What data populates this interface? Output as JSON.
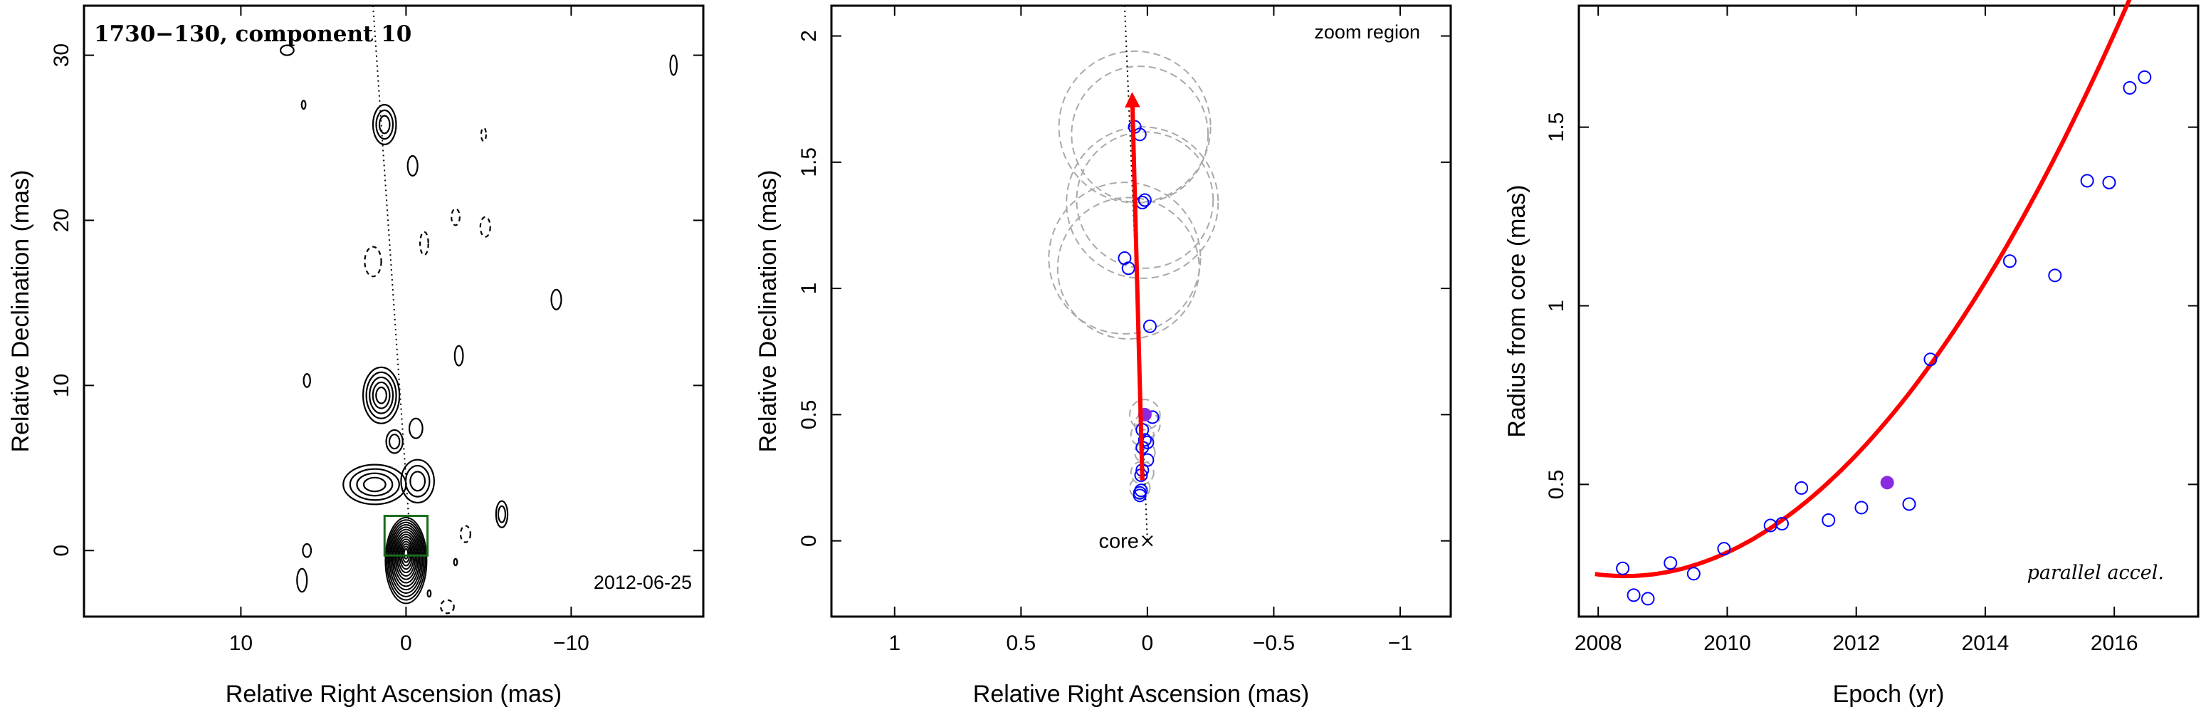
{
  "chart_data": [
    {
      "type": "contour",
      "title": "1730−130, component 10",
      "annotation": "2012-06-25",
      "xlabel": "Relative Right Ascension (mas)",
      "ylabel": "Relative Declination (mas)",
      "xlim": [
        19.5,
        -18
      ],
      "ylim": [
        -4,
        33
      ],
      "xticks": [
        {
          "v": 10,
          "label": "10"
        },
        {
          "v": 0,
          "label": "0"
        },
        {
          "v": -10,
          "label": "−10"
        }
      ],
      "yticks": [
        {
          "v": 0,
          "label": "0"
        },
        {
          "v": 10,
          "label": "10"
        },
        {
          "v": 20,
          "label": "20"
        },
        {
          "v": 30,
          "label": "30"
        }
      ],
      "jet_axis": [
        [
          2.0,
          33.0
        ],
        [
          -0.3,
          0.0
        ]
      ],
      "zoom_box": {
        "x": [
          1.3,
          -1.3
        ],
        "y": [
          -0.3,
          2.1
        ],
        "color": "#1a6b1a"
      },
      "core_contours": {
        "center": [
          0,
          -0.2
        ],
        "count": 14,
        "rx_max": 1.25,
        "ry_max": 2.6,
        "rx_min": 0.12,
        "ry_min": 0.3
      },
      "contours": [
        {
          "cx": 1.5,
          "cy": 9.4,
          "rx": 1.1,
          "ry": 1.7,
          "levels": 5,
          "style": "solid"
        },
        {
          "cx": 1.9,
          "cy": 4.0,
          "rx": 1.9,
          "ry": 1.2,
          "levels": 4,
          "style": "solid"
        },
        {
          "cx": 0.7,
          "cy": 6.6,
          "rx": 0.5,
          "ry": 0.7,
          "levels": 2,
          "style": "solid"
        },
        {
          "cx": -0.6,
          "cy": 7.4,
          "rx": 0.4,
          "ry": 0.6,
          "levels": 1,
          "style": "solid"
        },
        {
          "cx": -0.7,
          "cy": 4.2,
          "rx": 1.0,
          "ry": 1.3,
          "levels": 3,
          "style": "solid"
        },
        {
          "cx": 1.3,
          "cy": 25.8,
          "rx": 0.7,
          "ry": 1.2,
          "levels": 3,
          "style": "solid"
        },
        {
          "cx": -0.4,
          "cy": 23.3,
          "rx": 0.3,
          "ry": 0.6,
          "levels": 1,
          "style": "solid"
        },
        {
          "cx": -3.0,
          "cy": 20.2,
          "rx": 0.25,
          "ry": 0.5,
          "levels": 1,
          "style": "dashed"
        },
        {
          "cx": -1.1,
          "cy": 18.6,
          "rx": 0.25,
          "ry": 0.7,
          "levels": 1,
          "style": "dashed"
        },
        {
          "cx": 2.0,
          "cy": 17.5,
          "rx": 0.5,
          "ry": 0.9,
          "levels": 1,
          "style": "dashed"
        },
        {
          "cx": -4.8,
          "cy": 19.6,
          "rx": 0.3,
          "ry": 0.6,
          "levels": 1,
          "style": "dashed"
        },
        {
          "cx": -3.2,
          "cy": 11.8,
          "rx": 0.25,
          "ry": 0.6,
          "levels": 1,
          "style": "solid"
        },
        {
          "cx": -9.1,
          "cy": 15.2,
          "rx": 0.3,
          "ry": 0.6,
          "levels": 1,
          "style": "solid"
        },
        {
          "cx": -16.2,
          "cy": 29.4,
          "rx": 0.2,
          "ry": 0.6,
          "levels": 1,
          "style": "solid"
        },
        {
          "cx": -4.7,
          "cy": 25.2,
          "rx": 0.15,
          "ry": 0.4,
          "levels": 1,
          "style": "dashed"
        },
        {
          "cx": 7.2,
          "cy": 30.3,
          "rx": 0.4,
          "ry": 0.3,
          "levels": 1,
          "style": "solid"
        },
        {
          "cx": 6.2,
          "cy": 27.0,
          "rx": 0.12,
          "ry": 0.25,
          "levels": 1,
          "style": "solid"
        },
        {
          "cx": 6.0,
          "cy": 10.3,
          "rx": 0.2,
          "ry": 0.4,
          "levels": 1,
          "style": "solid"
        },
        {
          "cx": 6.0,
          "cy": 0.0,
          "rx": 0.25,
          "ry": 0.4,
          "levels": 1,
          "style": "solid"
        },
        {
          "cx": 6.3,
          "cy": -1.8,
          "rx": 0.3,
          "ry": 0.7,
          "levels": 1,
          "style": "solid"
        },
        {
          "cx": -3.6,
          "cy": 1.0,
          "rx": 0.3,
          "ry": 0.5,
          "levels": 1,
          "style": "dashed"
        },
        {
          "cx": -5.8,
          "cy": 2.2,
          "rx": 0.35,
          "ry": 0.8,
          "levels": 2,
          "style": "solid"
        },
        {
          "cx": -2.5,
          "cy": -3.4,
          "rx": 0.4,
          "ry": 0.4,
          "levels": 1,
          "style": "dashed"
        },
        {
          "cx": -3.0,
          "cy": -0.7,
          "rx": 0.1,
          "ry": 0.2,
          "levels": 1,
          "style": "solid"
        },
        {
          "cx": -1.4,
          "cy": -2.6,
          "rx": 0.1,
          "ry": 0.2,
          "levels": 1,
          "style": "solid"
        }
      ]
    },
    {
      "type": "scatter",
      "annotation": "zoom region",
      "core_label": "core",
      "xlabel": "Relative Right Ascension (mas)",
      "ylabel": "Relative Declination (mas)",
      "xlim": [
        1.25,
        -1.2
      ],
      "ylim": [
        -0.3,
        2.12
      ],
      "xticks": [
        {
          "v": 1,
          "label": "1"
        },
        {
          "v": 0.5,
          "label": "0.5"
        },
        {
          "v": 0,
          "label": "0"
        },
        {
          "v": -0.5,
          "label": "−0.5"
        },
        {
          "v": -1,
          "label": "−1"
        }
      ],
      "yticks": [
        {
          "v": 0,
          "label": "0"
        },
        {
          "v": 0.5,
          "label": "0.5"
        },
        {
          "v": 1,
          "label": "1"
        },
        {
          "v": 1.5,
          "label": "1.5"
        },
        {
          "v": 2,
          "label": "2"
        }
      ],
      "jet_axis": [
        [
          0.09,
          2.12
        ],
        [
          0.0,
          0.0
        ]
      ],
      "core": [
        0,
        0
      ],
      "arrow": {
        "from": [
          0.02,
          0.24
        ],
        "to": [
          0.06,
          1.76
        ],
        "color": "#ff0000"
      },
      "points": [
        {
          "x": 0.05,
          "y": 1.64
        },
        {
          "x": 0.03,
          "y": 1.61
        },
        {
          "x": 0.02,
          "y": 1.34
        },
        {
          "x": 0.01,
          "y": 1.35
        },
        {
          "x": 0.09,
          "y": 1.12
        },
        {
          "x": 0.075,
          "y": 1.08
        },
        {
          "x": -0.01,
          "y": 0.85
        },
        {
          "x": -0.02,
          "y": 0.49
        },
        {
          "x": 0.02,
          "y": 0.44
        },
        {
          "x": 0.01,
          "y": 0.4
        },
        {
          "x": 0.0,
          "y": 0.39
        },
        {
          "x": 0.02,
          "y": 0.37
        },
        {
          "x": 0.0,
          "y": 0.32
        },
        {
          "x": 0.02,
          "y": 0.28
        },
        {
          "x": 0.025,
          "y": 0.26
        },
        {
          "x": 0.025,
          "y": 0.2
        },
        {
          "x": 0.03,
          "y": 0.18
        },
        {
          "x": 0.03,
          "y": 0.19
        }
      ],
      "highlight_point": {
        "x": 0.01,
        "y": 0.5
      },
      "beam_circles": [
        {
          "x": 0.05,
          "y": 1.64,
          "r": 0.3
        },
        {
          "x": 0.03,
          "y": 1.61,
          "r": 0.27
        },
        {
          "x": 0.02,
          "y": 1.34,
          "r": 0.3
        },
        {
          "x": 0.01,
          "y": 1.35,
          "r": 0.27
        },
        {
          "x": 0.09,
          "y": 1.12,
          "r": 0.3
        },
        {
          "x": 0.075,
          "y": 1.08,
          "r": 0.28
        },
        {
          "x": 0.01,
          "y": 0.5,
          "r": 0.06
        },
        {
          "x": 0.0,
          "y": 0.46,
          "r": 0.05
        },
        {
          "x": 0.02,
          "y": 0.42,
          "r": 0.045
        },
        {
          "x": 0.01,
          "y": 0.35,
          "r": 0.04
        },
        {
          "x": 0.02,
          "y": 0.27,
          "r": 0.045
        },
        {
          "x": 0.03,
          "y": 0.21,
          "r": 0.04
        }
      ],
      "point_color": "#0000ff",
      "highlight_color": "#8a2be2"
    },
    {
      "type": "scatter",
      "annotation": "parallel accel.",
      "xlabel": "Epoch (yr)",
      "ylabel": "Radius from core (mas)",
      "xlim": [
        2007.7,
        2017.3
      ],
      "ylim": [
        0.13,
        1.84
      ],
      "xticks": [
        {
          "v": 2008,
          "label": "2008"
        },
        {
          "v": 2010,
          "label": "2010"
        },
        {
          "v": 2012,
          "label": "2012"
        },
        {
          "v": 2014,
          "label": "2014"
        },
        {
          "v": 2016,
          "label": "2016"
        }
      ],
      "yticks": [
        {
          "v": 0.5,
          "label": "0.5"
        },
        {
          "v": 1,
          "label": "1"
        },
        {
          "v": 1.5,
          "label": "1.5"
        }
      ],
      "points": [
        {
          "x": 2008.38,
          "y": 0.265
        },
        {
          "x": 2008.55,
          "y": 0.19
        },
        {
          "x": 2008.77,
          "y": 0.18
        },
        {
          "x": 2009.12,
          "y": 0.28
        },
        {
          "x": 2009.48,
          "y": 0.25
        },
        {
          "x": 2009.95,
          "y": 0.32
        },
        {
          "x": 2010.67,
          "y": 0.385
        },
        {
          "x": 2010.85,
          "y": 0.39
        },
        {
          "x": 2011.15,
          "y": 0.49
        },
        {
          "x": 2011.57,
          "y": 0.4
        },
        {
          "x": 2012.08,
          "y": 0.435
        },
        {
          "x": 2012.82,
          "y": 0.445
        },
        {
          "x": 2013.15,
          "y": 0.85
        },
        {
          "x": 2014.38,
          "y": 1.125
        },
        {
          "x": 2015.08,
          "y": 1.085
        },
        {
          "x": 2015.58,
          "y": 1.35
        },
        {
          "x": 2015.92,
          "y": 1.345
        },
        {
          "x": 2016.24,
          "y": 1.61
        },
        {
          "x": 2016.47,
          "y": 1.64
        }
      ],
      "highlight_point": {
        "x": 2012.48,
        "y": 0.505
      },
      "fit_curve": {
        "x_start": 2007.95,
        "x_end": 2016.95,
        "coeffs_about_2008": [
          0.248,
          -0.022,
          0.0264
        ]
      },
      "point_color": "#0000ff",
      "highlight_color": "#8a2be2",
      "curve_color": "#ff0000"
    }
  ]
}
